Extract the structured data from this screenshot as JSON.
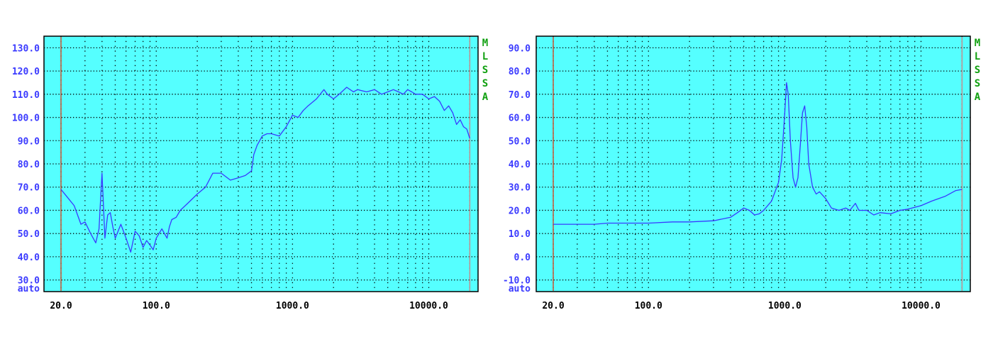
{
  "colors": {
    "plot_bg": "#55ffff",
    "trace": "#3a3aff",
    "grid": "#000000",
    "y_tick_text": "#3b3bff",
    "x_tick_text": "#000000",
    "side_label": "#10a010",
    "left_marker": "#cc5533",
    "right_marker": "#c09090"
  },
  "chart_data": [
    {
      "type": "line",
      "x_scale": "log",
      "xlim": [
        15,
        23000
      ],
      "ylim": [
        25,
        135
      ],
      "x_tick_labels": [
        {
          "value": 20,
          "label": "20.0"
        },
        {
          "value": 100,
          "label": "100.0"
        },
        {
          "value": 1000,
          "label": "1000.0"
        },
        {
          "value": 10000,
          "label": "10000.0"
        }
      ],
      "y_tick_labels": [
        {
          "value": 130,
          "label": "130.0"
        },
        {
          "value": 120,
          "label": "120.0"
        },
        {
          "value": 110,
          "label": "110.0"
        },
        {
          "value": 100,
          "label": "100.0"
        },
        {
          "value": 90,
          "label": "90.0"
        },
        {
          "value": 80,
          "label": "80.0"
        },
        {
          "value": 70,
          "label": "70.0"
        },
        {
          "value": 60,
          "label": "60.0"
        },
        {
          "value": 50,
          "label": "50.0"
        },
        {
          "value": 40,
          "label": "40.0"
        },
        {
          "value": 30,
          "label": "30.0"
        }
      ],
      "y_bottom_label": "auto",
      "side_label": [
        "M",
        "L",
        "S",
        "S",
        "A"
      ],
      "markers": [
        20,
        20000
      ],
      "grid": true,
      "series": [
        {
          "x": [
            20,
            22,
            25,
            28,
            30,
            33,
            36,
            38,
            40,
            42,
            44,
            46,
            48,
            50,
            55,
            60,
            65,
            70,
            75,
            80,
            85,
            90,
            95,
            100,
            110,
            120,
            125,
            130,
            140,
            150,
            170,
            200,
            230,
            260,
            300,
            350,
            400,
            450,
            500,
            520,
            550,
            600,
            650,
            700,
            800,
            900,
            1000,
            1100,
            1200,
            1300,
            1500,
            1700,
            1800,
            2000,
            2200,
            2500,
            2800,
            3000,
            3500,
            4000,
            4500,
            5000,
            5500,
            6000,
            6500,
            7000,
            7500,
            8000,
            9000,
            10000,
            11000,
            12000,
            13000,
            14000,
            15000,
            16000,
            17000,
            18000,
            19000,
            20000
          ],
          "y": [
            69,
            66,
            62,
            54,
            55,
            50,
            46,
            52,
            76,
            48,
            58,
            59,
            53,
            48,
            54,
            48,
            42,
            51,
            49,
            44,
            47,
            45,
            43,
            48,
            52,
            48,
            53,
            56,
            57,
            60,
            63,
            67,
            70,
            76,
            76,
            73,
            74,
            75,
            77,
            84,
            88,
            92,
            93,
            93,
            92,
            96,
            101,
            100,
            103,
            105,
            108,
            112,
            110,
            108,
            110,
            113,
            111,
            112,
            111,
            112,
            110,
            111,
            112,
            111,
            110,
            112,
            111,
            110,
            110,
            108,
            109,
            107,
            103,
            105,
            102,
            97,
            99,
            96,
            95,
            91
          ]
        }
      ]
    },
    {
      "type": "line",
      "x_scale": "log",
      "xlim": [
        15,
        23000
      ],
      "ylim": [
        -15,
        95
      ],
      "x_tick_labels": [
        {
          "value": 20,
          "label": "20.0"
        },
        {
          "value": 100,
          "label": "100.0"
        },
        {
          "value": 1000,
          "label": "1000.0"
        },
        {
          "value": 10000,
          "label": "10000.0"
        }
      ],
      "y_tick_labels": [
        {
          "value": 90,
          "label": "90.0"
        },
        {
          "value": 80,
          "label": "80.0"
        },
        {
          "value": 70,
          "label": "70.0"
        },
        {
          "value": 60,
          "label": "60.0"
        },
        {
          "value": 50,
          "label": "50.0"
        },
        {
          "value": 40,
          "label": "40.0"
        },
        {
          "value": 30,
          "label": "30.0"
        },
        {
          "value": 20,
          "label": "20.0"
        },
        {
          "value": 10,
          "label": "10.0"
        },
        {
          "value": 0,
          "label": "0.0"
        },
        {
          "value": -10,
          "label": "-10.0"
        }
      ],
      "y_bottom_label": "auto",
      "side_label": [
        "M",
        "L",
        "S",
        "S",
        "A"
      ],
      "markers": [
        20,
        20000
      ],
      "grid": true,
      "series": [
        {
          "x": [
            20,
            30,
            40,
            50,
            60,
            80,
            100,
            150,
            200,
            300,
            400,
            450,
            500,
            550,
            600,
            650,
            700,
            800,
            900,
            950,
            1000,
            1030,
            1060,
            1100,
            1150,
            1200,
            1250,
            1300,
            1350,
            1400,
            1450,
            1500,
            1600,
            1700,
            1800,
            2000,
            2200,
            2500,
            2800,
            3000,
            3300,
            3500,
            4000,
            4500,
            5000,
            6000,
            7000,
            8000,
            10000,
            12000,
            15000,
            18000,
            20000
          ],
          "y": [
            14,
            14,
            14,
            14.5,
            14.5,
            14.5,
            14.5,
            15,
            15,
            15.5,
            17,
            19,
            21,
            20,
            18,
            18.5,
            20,
            24,
            32,
            42,
            62,
            75,
            70,
            50,
            34,
            30,
            34,
            48,
            62,
            65,
            56,
            40,
            30,
            27,
            28,
            25,
            21,
            20,
            21,
            20,
            23,
            20,
            20,
            18,
            19,
            18.5,
            20,
            20.5,
            22,
            24,
            26,
            28.5,
            29
          ]
        }
      ]
    }
  ]
}
